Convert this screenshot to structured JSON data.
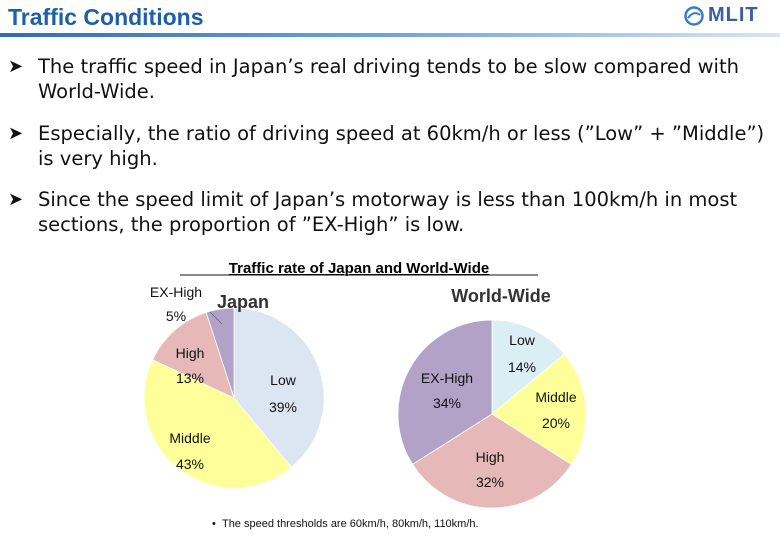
{
  "header": {
    "title": "Traffic Conditions",
    "logo_text": "MLIT"
  },
  "bullets": [
    {
      "text": "The traffic speed in Japan’s real driving tends to be slow compared with World-Wide."
    },
    {
      "text": "Especially, the ratio of driving speed at 60km/h or less (”Low” + ”Middle”) is very high."
    },
    {
      "text": "Since the speed limit of Japan’s motorway is less than 100km/h in most sections, the proportion of ”EX-High” is low."
    }
  ],
  "chart_title": "Traffic rate of Japan and World-Wide",
  "chart_data": [
    {
      "type": "pie",
      "title": "Japan",
      "slices": [
        {
          "label": "Low",
          "value": 39,
          "value_label": "39%",
          "color": "#dce6f2"
        },
        {
          "label": "Middle",
          "value": 43,
          "value_label": "43%",
          "color": "#ffff99"
        },
        {
          "label": "High",
          "value": 13,
          "value_label": "13%",
          "color": "#e6b9b8"
        },
        {
          "label": "EX-High",
          "value": 5,
          "value_label": "5%",
          "color": "#b3a2c7"
        }
      ]
    },
    {
      "type": "pie",
      "title": "World-Wide",
      "slices": [
        {
          "label": "Low",
          "value": 14,
          "value_label": "14%",
          "color": "#dbeef4"
        },
        {
          "label": "Middle",
          "value": 20,
          "value_label": "20%",
          "color": "#ffff99"
        },
        {
          "label": "High",
          "value": 32,
          "value_label": "32%",
          "color": "#e6b9b8"
        },
        {
          "label": "EX-High",
          "value": 34,
          "value_label": "34%",
          "color": "#b3a2c7"
        }
      ]
    }
  ],
  "footnote": "The speed thresholds are 60km/h, 80km/h, 110km/h."
}
